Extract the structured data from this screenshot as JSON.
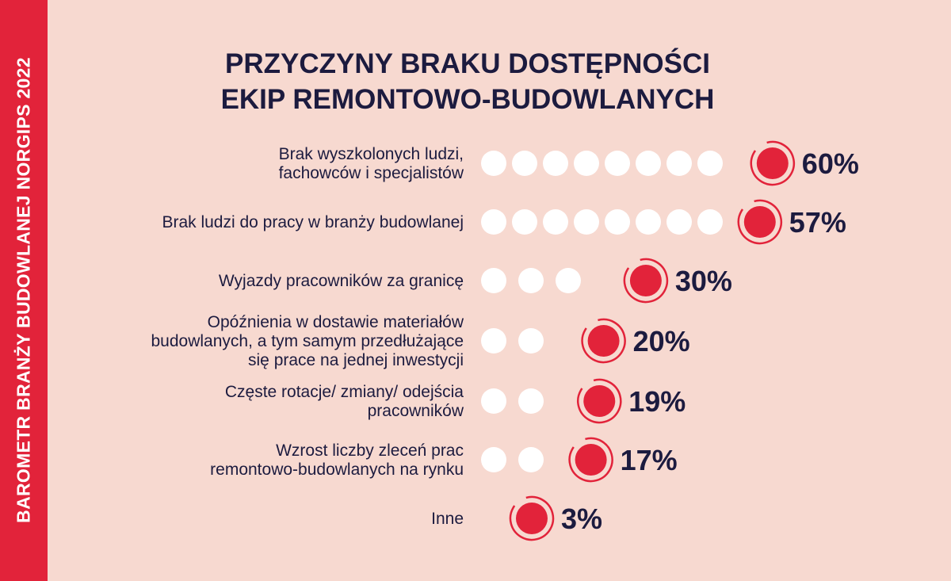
{
  "side_banner": "BAROMETR BRANŻY BUDOWLANEJ NORGIPS 2022",
  "title_lines": [
    "PRZYCZYNY BRAKU DOSTĘPNOŚCI",
    "EKIP REMONTOWO-BUDOWLANYCH"
  ],
  "colors": {
    "background": "#f7d9d0",
    "accent_red": "#e2233a",
    "navy_text": "#1c1b3f",
    "dot_white": "#ffffff"
  },
  "chart_data": {
    "type": "bar",
    "encoding": "dot-plot",
    "title": "PRZYCZYNY BRAKU DOSTĘPNOŚCI EKIP REMONTOWO-BUDOWLANYCH",
    "categories": [
      [
        "Brak wyszkolonych ludzi,",
        "fachowców i specjalistów"
      ],
      [
        "Brak ludzi do pracy w branży budowlanej"
      ],
      [
        "Wyjazdy pracowników za granicę"
      ],
      [
        "Opóźnienia w dostawie materiałów",
        "budowlanych, a tym samym przedłużające",
        "się prace na jednej inwestycji"
      ],
      [
        "Częste rotacje/ zmiany/ odejścia",
        "pracowników"
      ],
      [
        "Wzrost liczby zleceń prac",
        "remontowo-budowlanych na rynku"
      ],
      [
        "Inne"
      ]
    ],
    "values": [
      60,
      57,
      30,
      20,
      19,
      17,
      3
    ],
    "value_labels": [
      "60%",
      "57%",
      "30%",
      "20%",
      "19%",
      "17%",
      "3%"
    ],
    "white_dots": [
      8,
      8,
      3,
      2,
      2,
      2,
      0
    ]
  }
}
